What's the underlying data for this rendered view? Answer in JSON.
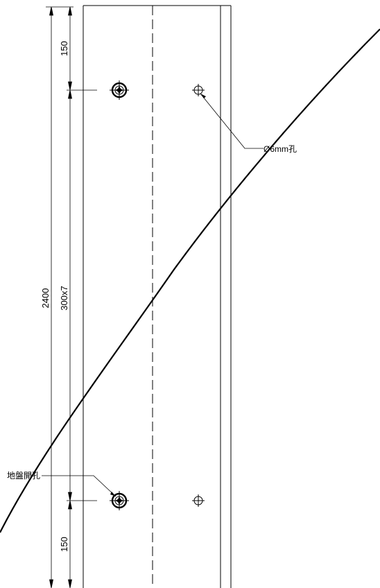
{
  "dimensions": {
    "overall": "2400",
    "spacing": "300x7",
    "top_end": "150",
    "bottom_end": "150"
  },
  "callouts": {
    "hole": "Ø6mm孔",
    "floor_hole": "地盤開孔"
  },
  "colors": {
    "line": "#000000",
    "background": "#ffffff"
  }
}
